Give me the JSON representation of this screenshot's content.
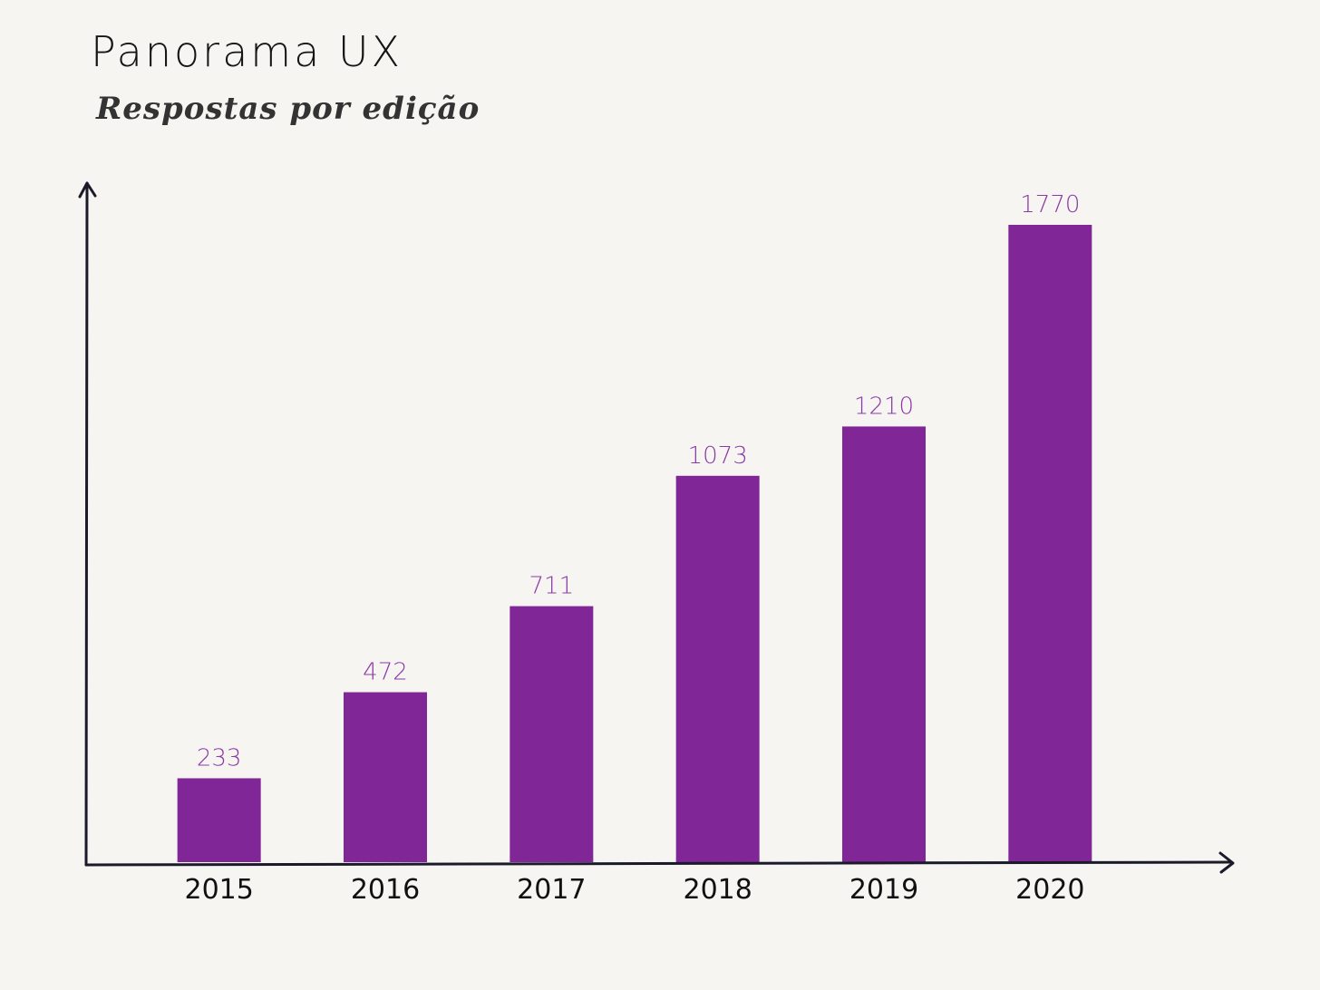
{
  "header": {
    "title": "Panorama UX",
    "subtitle": "Respostas por edição"
  },
  "colors": {
    "bar": "#812696",
    "value_label": "#8b3aa5",
    "axis": "#1b1a2b",
    "background": "#f6f5f2"
  },
  "chart_data": {
    "type": "bar",
    "title": "Panorama UX",
    "subtitle": "Respostas por edição",
    "xlabel": "",
    "ylabel": "",
    "categories": [
      "2015",
      "2016",
      "2017",
      "2018",
      "2019",
      "2020"
    ],
    "values": [
      233,
      472,
      711,
      1073,
      1210,
      1770
    ],
    "data_labels": [
      "233",
      "472",
      "711",
      "1073",
      "1210",
      "1770"
    ],
    "ylim": [
      0,
      1770
    ],
    "grid": false,
    "legend": "none"
  }
}
